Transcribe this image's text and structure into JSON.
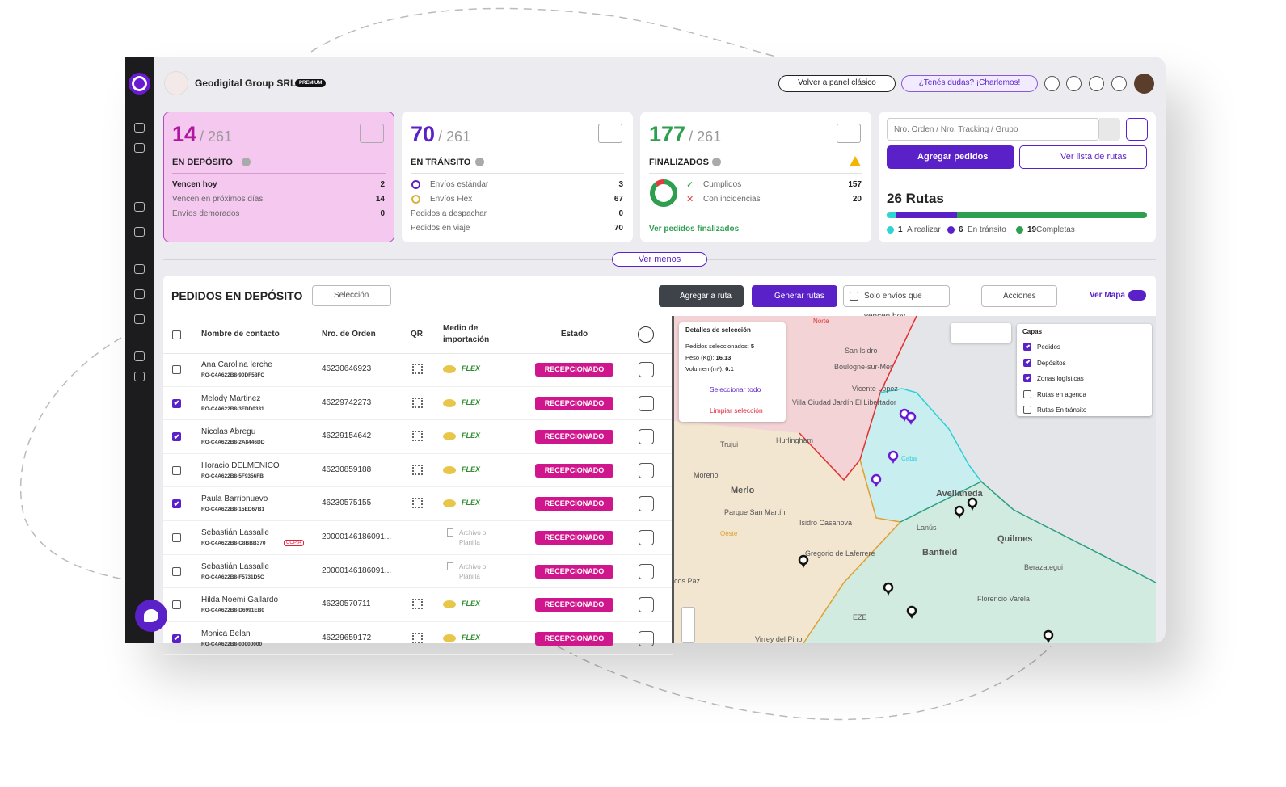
{
  "header": {
    "company": "Geodigital Group SRL",
    "badge": "PREMIUM",
    "back_button": "Volver a panel clásico",
    "help_button": "¿Tenés dudas? ¡Charlemos!"
  },
  "cards": [
    {
      "count": "14",
      "total": "/ 261",
      "title": "EN DEPÓSITO",
      "rows": [
        {
          "label": "Vencen hoy",
          "value": "2"
        },
        {
          "label": "Vencen en próximos días",
          "value": "14"
        },
        {
          "label": "Envíos demorados",
          "value": "0"
        }
      ]
    },
    {
      "count": "70",
      "total": "/ 261",
      "title": "EN TRÁNSITO",
      "rows": [
        {
          "label": "Envíos estándar",
          "value": "3"
        },
        {
          "label": "Envíos Flex",
          "value": "67"
        },
        {
          "label": "Pedidos a despachar",
          "value": "0"
        },
        {
          "label": "Pedidos en viaje",
          "value": "70"
        }
      ]
    },
    {
      "count": "177",
      "total": "/ 261",
      "title": "FINALIZADOS",
      "rows": [
        {
          "label": "Cumplidos",
          "value": 157,
          "color": "#2e9e4f"
        },
        {
          "label": "Con incidencias",
          "value": 20,
          "color": "#e23b3b"
        }
      ],
      "link": "Ver pedidos finalizados"
    }
  ],
  "search": {
    "placeholder": "Nro. Orden / Nro. Tracking / Grupo",
    "add_button": "Agregar pedidos",
    "routes_button": "Ver lista de rutas"
  },
  "routes": {
    "title": "26 Rutas",
    "segments": [
      {
        "count": 1,
        "label": "A realizar",
        "color": "#2ed3d3"
      },
      {
        "count": 6,
        "label": "En tránsito",
        "color": "#5b21c9"
      },
      {
        "count": 19,
        "label": "Completas",
        "color": "#2e9e4f"
      }
    ]
  },
  "toggle": "Ver menos",
  "orders": {
    "title": "PEDIDOS EN DEPÓSITO",
    "selection": "Selección",
    "add_route": "Agregar a ruta",
    "generate": "Generar rutas",
    "due_today": "Solo envíos que vencen hoy",
    "actions": "Acciones",
    "map_toggle": "Ver Mapa",
    "columns": [
      "Nombre de contacto",
      "Nro. de Orden",
      "QR",
      "Medio de importación",
      "Estado"
    ],
    "rows": [
      {
        "checked": false,
        "name": "Ana Carolina lerche",
        "code": "RO-C4A622B8-90DF58FC",
        "order": "46230646923",
        "medium": "FLEX",
        "status": "RECEPCIONADO"
      },
      {
        "checked": true,
        "name": "Melody Martinez",
        "code": "RO-C4A622B8-3FDD0331",
        "order": "46229742273",
        "medium": "FLEX",
        "status": "RECEPCIONADO"
      },
      {
        "checked": true,
        "name": "Nicolas Abregu",
        "code": "RO-C4A622B8-2A8446DD",
        "order": "46229154642",
        "medium": "FLEX",
        "status": "RECEPCIONADO"
      },
      {
        "checked": false,
        "name": "Horacio DELMENICO",
        "code": "RO-C4A622B8-5F9356FB",
        "order": "46230859188",
        "medium": "FLEX",
        "status": "RECEPCIONADO"
      },
      {
        "checked": true,
        "name": "Paula Barrionuevo",
        "code": "RO-C4A622B8-15ED67B1",
        "order": "46230575155",
        "medium": "FLEX",
        "status": "RECEPCIONADO"
      },
      {
        "checked": false,
        "name": "Sebastián Lassalle",
        "code": "RO-C4A622B8-C8BBB370",
        "tag": "COPIA",
        "order": "20000146186091...",
        "medium": "Archivo o Planilla",
        "status": "RECEPCIONADO"
      },
      {
        "checked": false,
        "name": "Sebastián Lassalle",
        "code": "RO-C4A622B8-F5731D5C",
        "order": "20000146186091...",
        "medium": "Archivo o Planilla",
        "status": "RECEPCIONADO"
      },
      {
        "checked": false,
        "name": "Hilda Noemi Gallardo",
        "code": "RO-C4A622B8-D6991EB0",
        "order": "46230570711",
        "medium": "FLEX",
        "status": "RECEPCIONADO"
      },
      {
        "checked": true,
        "name": "Monica Belan",
        "code": "RO-C4A622B8-00000000",
        "order": "46229659172",
        "medium": "FLEX",
        "status": "RECEPCIONADO"
      }
    ]
  },
  "map": {
    "details": {
      "title": "Detalles de selección",
      "items": [
        {
          "label": "Pedidos seleccionados:",
          "value": "5"
        },
        {
          "label": "Peso (Kg):",
          "value": "16.13"
        },
        {
          "label": "Volumen (m³):",
          "value": "0.1"
        }
      ],
      "select_all": "Seleccionar todo",
      "clear": "Limpiar selección"
    },
    "layers": {
      "title": "Capas",
      "items": [
        {
          "label": "Pedidos",
          "checked": true
        },
        {
          "label": "Depósitos",
          "checked": true
        },
        {
          "label": "Zonas logísticas",
          "checked": true
        },
        {
          "label": "Rutas en agenda",
          "checked": false
        },
        {
          "label": "Rutas En tránsito",
          "checked": false
        }
      ]
    },
    "labels": [
      "Norte",
      "San Isidro",
      "Boulogne-sur-Mer",
      "Vicente López",
      "Villa Ciudad Jardín El Libertador",
      "Hurlingham",
      "Trujui",
      "Caba",
      "Moreno",
      "Merlo",
      "Parque San Martín",
      "Oeste",
      "Isidro Casanova",
      "Avellaneda",
      "Lanús",
      "Quilmes",
      "Banfield",
      "Gregorio de Laferrere",
      "Berazategui",
      "Florencio Varela",
      "EZE",
      "Virrey del Pino",
      "cos Paz"
    ]
  }
}
